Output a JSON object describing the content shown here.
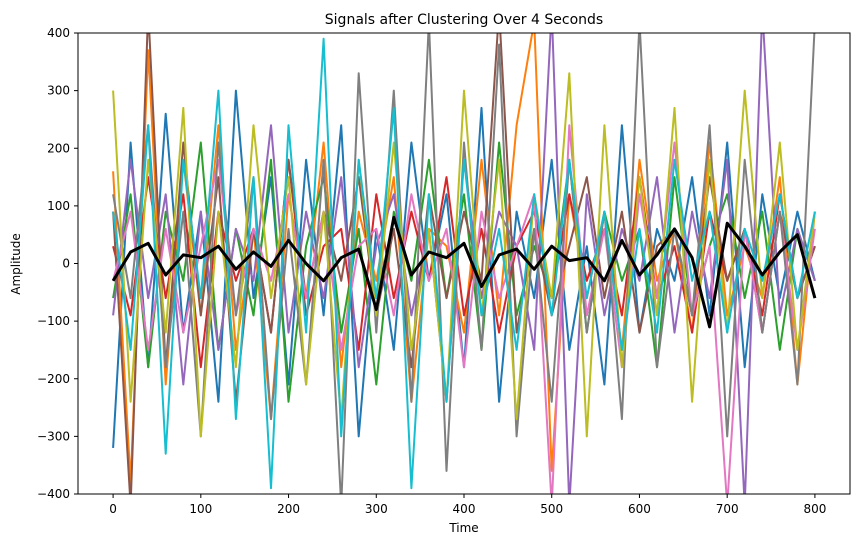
{
  "chart_data": {
    "type": "line",
    "title": "Signals after Clustering Over 4 Seconds",
    "xlabel": "Time",
    "ylabel": "Amplitude",
    "xlim": [
      -40,
      840
    ],
    "ylim": [
      -400,
      400
    ],
    "x_ticks": [
      0,
      100,
      200,
      300,
      400,
      500,
      600,
      700,
      800
    ],
    "y_ticks": [
      -400,
      -300,
      -200,
      -100,
      0,
      100,
      200,
      300,
      400
    ],
    "x_tick_labels": [
      "0",
      "100",
      "200",
      "300",
      "400",
      "500",
      "600",
      "700",
      "800"
    ],
    "y_tick_labels": [
      "−400",
      "−300",
      "−200",
      "−100",
      "0",
      "100",
      "200",
      "300",
      "400"
    ],
    "grid": false,
    "legend": "none",
    "x_sample_step": 20,
    "series": [
      {
        "color": "#1f77b4",
        "values": [
          -320,
          210,
          -180,
          260,
          -120,
          90,
          -240,
          300,
          -60,
          150,
          -210,
          180,
          -90,
          240,
          -300,
          60,
          -150,
          210,
          -30,
          120,
          -180,
          270,
          -240,
          90,
          -60,
          180,
          -150,
          30,
          -210,
          240,
          -120,
          60,
          -30,
          150,
          -90,
          210,
          -180,
          120,
          -60,
          90,
          -30
        ]
      },
      {
        "color": "#ff7f0e",
        "values": [
          160,
          -380,
          370,
          -210,
          180,
          -90,
          240,
          -150,
          60,
          -270,
          120,
          -60,
          210,
          -180,
          90,
          -30,
          150,
          -240,
          60,
          30,
          -120,
          180,
          -90,
          240,
          420,
          -360,
          120,
          -60,
          90,
          -150,
          180,
          -30,
          60,
          -120,
          210,
          -90,
          30,
          -60,
          150,
          -210,
          90
        ]
      },
      {
        "color": "#2ca02c",
        "values": [
          -60,
          120,
          -180,
          90,
          -30,
          210,
          -150,
          60,
          -90,
          180,
          -240,
          30,
          150,
          -120,
          60,
          -210,
          90,
          -30,
          180,
          -60,
          120,
          -150,
          210,
          -90,
          30,
          -60,
          180,
          -120,
          90,
          -30,
          60,
          -180,
          150,
          -90,
          30,
          120,
          -60,
          90,
          -150,
          60,
          -30
        ]
      },
      {
        "color": "#d62728",
        "values": [
          30,
          -90,
          150,
          -60,
          120,
          -180,
          90,
          -30,
          60,
          -120,
          180,
          -90,
          30,
          60,
          -150,
          120,
          -60,
          90,
          -30,
          150,
          -90,
          60,
          -120,
          30,
          90,
          -60,
          120,
          -30,
          60,
          -90,
          150,
          -60,
          30,
          -120,
          90,
          -30,
          60,
          -90,
          120,
          -60,
          30
        ]
      },
      {
        "color": "#9467bd",
        "values": [
          -90,
          180,
          -60,
          120,
          -210,
          90,
          -150,
          60,
          -30,
          240,
          -120,
          90,
          -60,
          150,
          -180,
          30,
          120,
          -90,
          60,
          -240,
          180,
          -60,
          90,
          30,
          -150,
          440,
          -420,
          120,
          -90,
          60,
          -30,
          150,
          -120,
          90,
          -60,
          180,
          -420,
          440,
          -90,
          60,
          -30
        ]
      },
      {
        "color": "#8c564b",
        "values": [
          90,
          -420,
          440,
          -180,
          210,
          -90,
          150,
          -240,
          60,
          -120,
          180,
          -60,
          90,
          -30,
          150,
          -90,
          60,
          -180,
          120,
          -60,
          90,
          -30,
          440,
          -120,
          60,
          -90,
          30,
          150,
          -60,
          90,
          -120,
          30,
          60,
          -90,
          150,
          -30,
          60,
          -120,
          90,
          -60,
          30
        ]
      },
      {
        "color": "#e377c2",
        "values": [
          -30,
          90,
          -150,
          60,
          -120,
          30,
          180,
          -90,
          60,
          -30,
          120,
          -60,
          90,
          -150,
          30,
          60,
          -90,
          120,
          -30,
          60,
          -180,
          90,
          -60,
          30,
          120,
          -420,
          240,
          -90,
          60,
          -180,
          120,
          -60,
          210,
          -90,
          30,
          -420,
          60,
          -120,
          90,
          -150,
          60
        ]
      },
      {
        "color": "#7f7f7f",
        "values": [
          120,
          -60,
          240,
          -180,
          90,
          -300,
          210,
          -90,
          150,
          -270,
          60,
          -210,
          180,
          -420,
          330,
          -120,
          300,
          -240,
          420,
          -360,
          210,
          -150,
          380,
          -300,
          60,
          -240,
          180,
          -120,
          90,
          -270,
          420,
          -180,
          60,
          -90,
          240,
          -300,
          180,
          -120,
          90,
          -210,
          420
        ]
      },
      {
        "color": "#bcbd22",
        "values": [
          300,
          -240,
          180,
          -120,
          270,
          -300,
          90,
          -180,
          240,
          -60,
          150,
          -210,
          90,
          -270,
          180,
          -90,
          210,
          -150,
          60,
          -240,
          300,
          -90,
          180,
          -270,
          120,
          -60,
          330,
          -300,
          240,
          -180,
          150,
          -90,
          270,
          -240,
          180,
          -120,
          300,
          -60,
          210,
          -150,
          90
        ]
      },
      {
        "color": "#17becf",
        "values": [
          90,
          -150,
          240,
          -330,
          180,
          -60,
          300,
          -270,
          150,
          -390,
          240,
          -120,
          390,
          -300,
          180,
          -60,
          270,
          -390,
          120,
          -240,
          180,
          -90,
          60,
          -150,
          120,
          -90,
          180,
          -60,
          90,
          -150,
          60,
          -120,
          180,
          -30,
          90,
          -120,
          60,
          -30,
          120,
          -60,
          90
        ]
      },
      {
        "color": "#000000",
        "values": [
          -30,
          20,
          35,
          -20,
          15,
          10,
          30,
          -10,
          20,
          -5,
          40,
          0,
          -30,
          10,
          25,
          -80,
          80,
          -20,
          20,
          10,
          35,
          -40,
          15,
          25,
          -10,
          30,
          5,
          10,
          -30,
          40,
          -20,
          15,
          60,
          10,
          -110,
          70,
          30,
          -20,
          20,
          50,
          -60
        ]
      }
    ]
  }
}
